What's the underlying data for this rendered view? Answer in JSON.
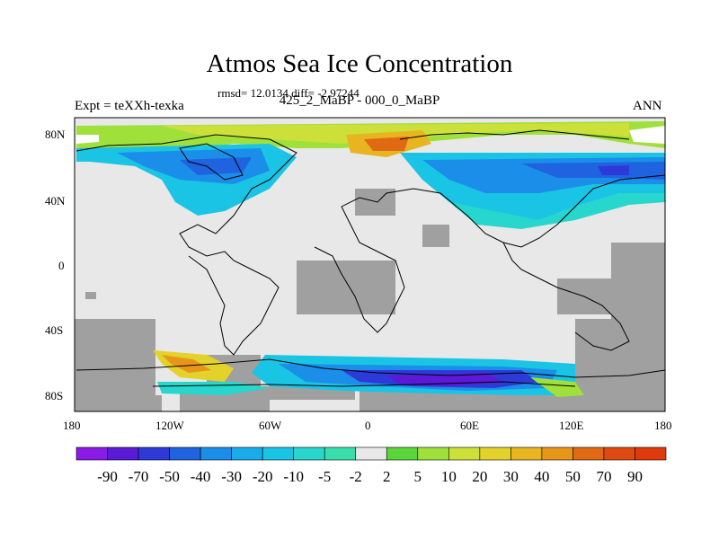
{
  "title": "Atmos Sea Ice Concentration",
  "stats": "rmsd= 12.0134 diff= -2.97244",
  "left_label": "Expt = teXXh-texka",
  "center_label": "425_2_MaBP - 000_0_MaBP",
  "right_label": "ANN",
  "lat_ticks": [
    "80N",
    "40N",
    "0",
    "40S",
    "80S"
  ],
  "lon_ticks": [
    "180",
    "120W",
    "60W",
    "0",
    "60E",
    "120E",
    "180"
  ],
  "colorbar": {
    "labels": [
      "-90",
      "-70",
      "-50",
      "-40",
      "-30",
      "-20",
      "-10",
      "-5",
      "-2",
      "2",
      "5",
      "10",
      "20",
      "30",
      "40",
      "50",
      "70",
      "90"
    ],
    "colors": [
      "#8a1be6",
      "#5a1ad6",
      "#2e3ad8",
      "#1f63e0",
      "#1a8ee8",
      "#19acea",
      "#1ac4e4",
      "#27d6cc",
      "#38dfaa",
      "#e8e8e8",
      "#5ad63a",
      "#9fe03a",
      "#cde03a",
      "#e3d22a",
      "#e8b41f",
      "#e8961a",
      "#e06a14",
      "#e04a10",
      "#e03a0c"
    ]
  },
  "map": {
    "land_color": "#a0a0a0",
    "ocean_color": "#e8e8e8"
  }
}
